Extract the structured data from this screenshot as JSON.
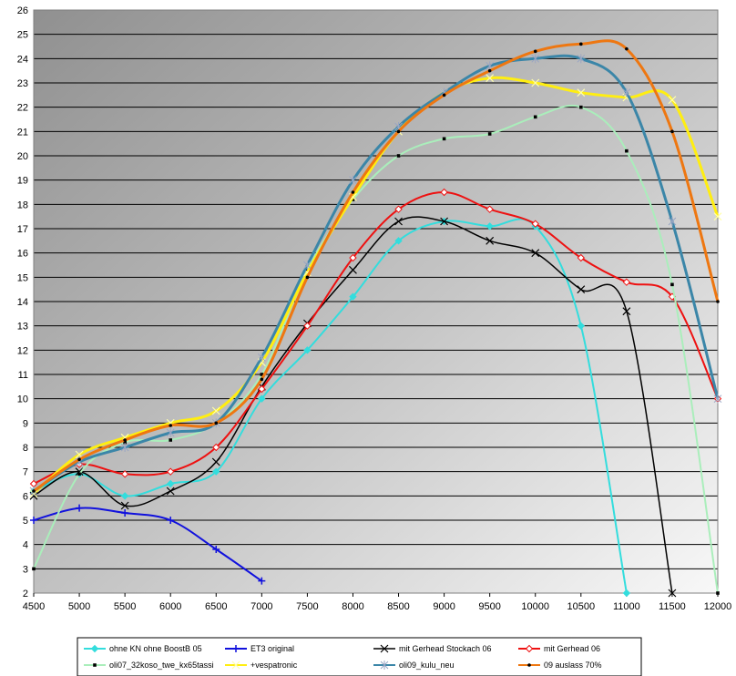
{
  "chart_data": {
    "type": "line",
    "title": "",
    "xlabel": "",
    "ylabel": "",
    "xlim": [
      4500,
      12000
    ],
    "ylim": [
      2,
      26
    ],
    "x_ticks": [
      "4500",
      "5000",
      "5500",
      "6000",
      "6500",
      "7000",
      "7500",
      "8000",
      "8500",
      "9000",
      "9500",
      "10000",
      "10500",
      "11000",
      "11500",
      "12000"
    ],
    "y_ticks": [
      "2",
      "3",
      "4",
      "5",
      "6",
      "7",
      "8",
      "9",
      "10",
      "11",
      "12",
      "13",
      "14",
      "15",
      "16",
      "17",
      "18",
      "19",
      "20",
      "21",
      "22",
      "23",
      "24",
      "25",
      "26"
    ],
    "grid": "horizontal",
    "legend_position": "bottom",
    "series": [
      {
        "name": "ohne KN ohne BoostB 05",
        "color": "#33dddd",
        "marker": "diamond",
        "width": 2,
        "points": [
          [
            4500,
            6.2
          ],
          [
            5000,
            6.9
          ],
          [
            5500,
            6.0
          ],
          [
            6000,
            6.5
          ],
          [
            6500,
            7.0
          ],
          [
            7000,
            10.0
          ],
          [
            7500,
            12.0
          ],
          [
            8000,
            14.2
          ],
          [
            8500,
            16.5
          ],
          [
            9000,
            17.3
          ],
          [
            9500,
            17.1
          ],
          [
            10000,
            17.1
          ],
          [
            10500,
            13.0
          ],
          [
            11000,
            2.0
          ]
        ]
      },
      {
        "name": "ET3 original",
        "color": "#1111dd",
        "marker": "plus",
        "width": 2,
        "points": [
          [
            4500,
            5.0
          ],
          [
            5000,
            5.5
          ],
          [
            5500,
            5.3
          ],
          [
            6000,
            5.0
          ],
          [
            6500,
            3.8
          ],
          [
            7000,
            2.5
          ]
        ]
      },
      {
        "name": "mit Gerhead Stockach 06",
        "color": "#000000",
        "marker": "cross",
        "width": 1.5,
        "points": [
          [
            4500,
            6.0
          ],
          [
            5000,
            7.0
          ],
          [
            5500,
            5.6
          ],
          [
            6000,
            6.2
          ],
          [
            6500,
            7.4
          ],
          [
            7000,
            10.5
          ],
          [
            7500,
            13.1
          ],
          [
            8000,
            15.3
          ],
          [
            8500,
            17.3
          ],
          [
            9000,
            17.3
          ],
          [
            9500,
            16.5
          ],
          [
            10000,
            16.0
          ],
          [
            10500,
            14.5
          ],
          [
            11000,
            13.6
          ],
          [
            11500,
            2.0
          ]
        ]
      },
      {
        "name": "mit Gerhead 06",
        "color": "#ee1111",
        "marker": "diamond-open",
        "width": 2,
        "points": [
          [
            4500,
            6.5
          ],
          [
            5000,
            7.3
          ],
          [
            5500,
            6.9
          ],
          [
            6000,
            7.0
          ],
          [
            6500,
            8.0
          ],
          [
            7000,
            10.4
          ],
          [
            7500,
            13.0
          ],
          [
            8000,
            15.8
          ],
          [
            8500,
            17.8
          ],
          [
            9000,
            18.5
          ],
          [
            9500,
            17.8
          ],
          [
            10000,
            17.2
          ],
          [
            10500,
            15.8
          ],
          [
            11000,
            14.8
          ],
          [
            11500,
            14.2
          ],
          [
            12000,
            10.0
          ]
        ]
      },
      {
        "name": "oli07_32koso_twe_kx65tassi",
        "color": "#aaeebb",
        "marker": "square",
        "width": 2,
        "points": [
          [
            4500,
            3.0
          ],
          [
            5000,
            6.9
          ],
          [
            5500,
            8.2
          ],
          [
            6000,
            8.3
          ],
          [
            6500,
            9.0
          ],
          [
            7000,
            11.0
          ],
          [
            7500,
            15.3
          ],
          [
            8000,
            18.2
          ],
          [
            8500,
            20.0
          ],
          [
            9000,
            20.7
          ],
          [
            9500,
            20.9
          ],
          [
            10000,
            21.6
          ],
          [
            10500,
            22.0
          ],
          [
            11000,
            20.2
          ],
          [
            11500,
            14.7
          ],
          [
            12000,
            2.0
          ]
        ]
      },
      {
        "name": "+vespatronic",
        "color": "#ffee11",
        "marker": "x",
        "width": 3,
        "points": [
          [
            4500,
            6.1
          ],
          [
            5000,
            7.7
          ],
          [
            5500,
            8.4
          ],
          [
            6000,
            9.0
          ],
          [
            6500,
            9.5
          ],
          [
            7000,
            11.5
          ],
          [
            7500,
            15.2
          ],
          [
            8000,
            18.3
          ],
          [
            8500,
            21.0
          ],
          [
            9000,
            22.6
          ],
          [
            9500,
            23.2
          ],
          [
            10000,
            23.0
          ],
          [
            10500,
            22.6
          ],
          [
            11000,
            22.4
          ],
          [
            11500,
            22.3
          ],
          [
            12000,
            17.5
          ]
        ]
      },
      {
        "name": "oli09_kulu_neu",
        "color": "#3b86a8",
        "marker": "star",
        "width": 3,
        "points": [
          [
            4500,
            6.2
          ],
          [
            5000,
            7.4
          ],
          [
            5500,
            8.0
          ],
          [
            6000,
            8.6
          ],
          [
            6500,
            9.0
          ],
          [
            7000,
            11.7
          ],
          [
            7500,
            15.5
          ],
          [
            8000,
            19.0
          ],
          [
            8500,
            21.2
          ],
          [
            9000,
            22.6
          ],
          [
            9500,
            23.7
          ],
          [
            10000,
            24.0
          ],
          [
            10500,
            24.0
          ],
          [
            11000,
            22.6
          ],
          [
            11500,
            17.3
          ],
          [
            12000,
            10.0
          ]
        ]
      },
      {
        "name": "09 auslass 70%",
        "color": "#ee7711",
        "marker": "dot",
        "width": 3,
        "points": [
          [
            4500,
            6.2
          ],
          [
            5000,
            7.5
          ],
          [
            5500,
            8.3
          ],
          [
            6000,
            8.9
          ],
          [
            6500,
            9.0
          ],
          [
            7000,
            10.8
          ],
          [
            7500,
            15.0
          ],
          [
            8000,
            18.5
          ],
          [
            8500,
            21.0
          ],
          [
            9000,
            22.5
          ],
          [
            9500,
            23.5
          ],
          [
            10000,
            24.3
          ],
          [
            10500,
            24.6
          ],
          [
            11000,
            24.4
          ],
          [
            11500,
            21.0
          ],
          [
            12000,
            14.0
          ]
        ]
      }
    ]
  }
}
